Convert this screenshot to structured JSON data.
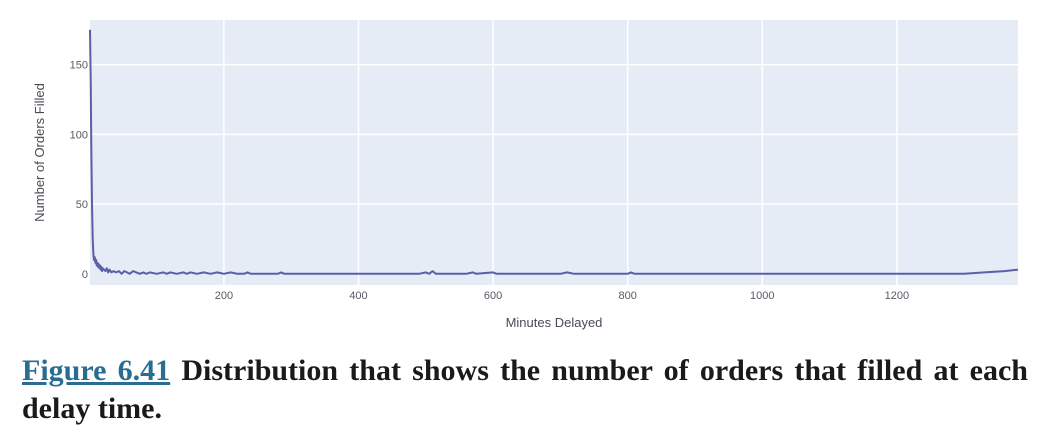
{
  "chart_data": {
    "type": "line",
    "xlabel": "Minutes Delayed",
    "ylabel": "Number of Orders Filled",
    "xlim": [
      1,
      1380
    ],
    "ylim": [
      -8,
      182
    ],
    "xticks": [
      200,
      400,
      600,
      800,
      1000,
      1200
    ],
    "yticks": [
      0,
      50,
      100,
      150
    ],
    "grid": true,
    "colors": {
      "background": "#e5ecf6",
      "line": "#5a5fa8",
      "grid": "#ffffff"
    },
    "series": [
      {
        "x": [
          1,
          2,
          3,
          4,
          5,
          6,
          7,
          8,
          9,
          10,
          11,
          12,
          13,
          14,
          15,
          16,
          17,
          18,
          19,
          20,
          22,
          24,
          26,
          28,
          30,
          33,
          36,
          40,
          44,
          48,
          52,
          56,
          60,
          65,
          70,
          75,
          80,
          85,
          90,
          100,
          110,
          115,
          120,
          130,
          140,
          145,
          150,
          160,
          170,
          180,
          190,
          200,
          210,
          220,
          230,
          235,
          240,
          260,
          280,
          285,
          290,
          300,
          350,
          400,
          450,
          490,
          500,
          505,
          510,
          515,
          520,
          560,
          570,
          575,
          600,
          605,
          650,
          700,
          710,
          720,
          800,
          805,
          810,
          900,
          1000,
          1100,
          1200,
          1300,
          1330,
          1360,
          1380
        ],
        "y": [
          175,
          140,
          90,
          50,
          25,
          14,
          10,
          12,
          8,
          10,
          6,
          8,
          5,
          7,
          4,
          6,
          3,
          5,
          2,
          4,
          3,
          2,
          4,
          1,
          3,
          1,
          2,
          1,
          2,
          0,
          2,
          1,
          0,
          2,
          1,
          0,
          1,
          0,
          1,
          0,
          1,
          0,
          1,
          0,
          1,
          0,
          1,
          0,
          1,
          0,
          1,
          0,
          1,
          0,
          0,
          1,
          0,
          0,
          0,
          1,
          0,
          0,
          0,
          0,
          0,
          0,
          1,
          0,
          2,
          0,
          0,
          0,
          1,
          0,
          1,
          0,
          0,
          0,
          1,
          0,
          0,
          1,
          0,
          0,
          0,
          0,
          0,
          0,
          1,
          2,
          3
        ]
      }
    ]
  },
  "caption": {
    "figure_label": "Figure 6.41",
    "text": " Distribution that shows the number of orders that filled at each delay time."
  }
}
